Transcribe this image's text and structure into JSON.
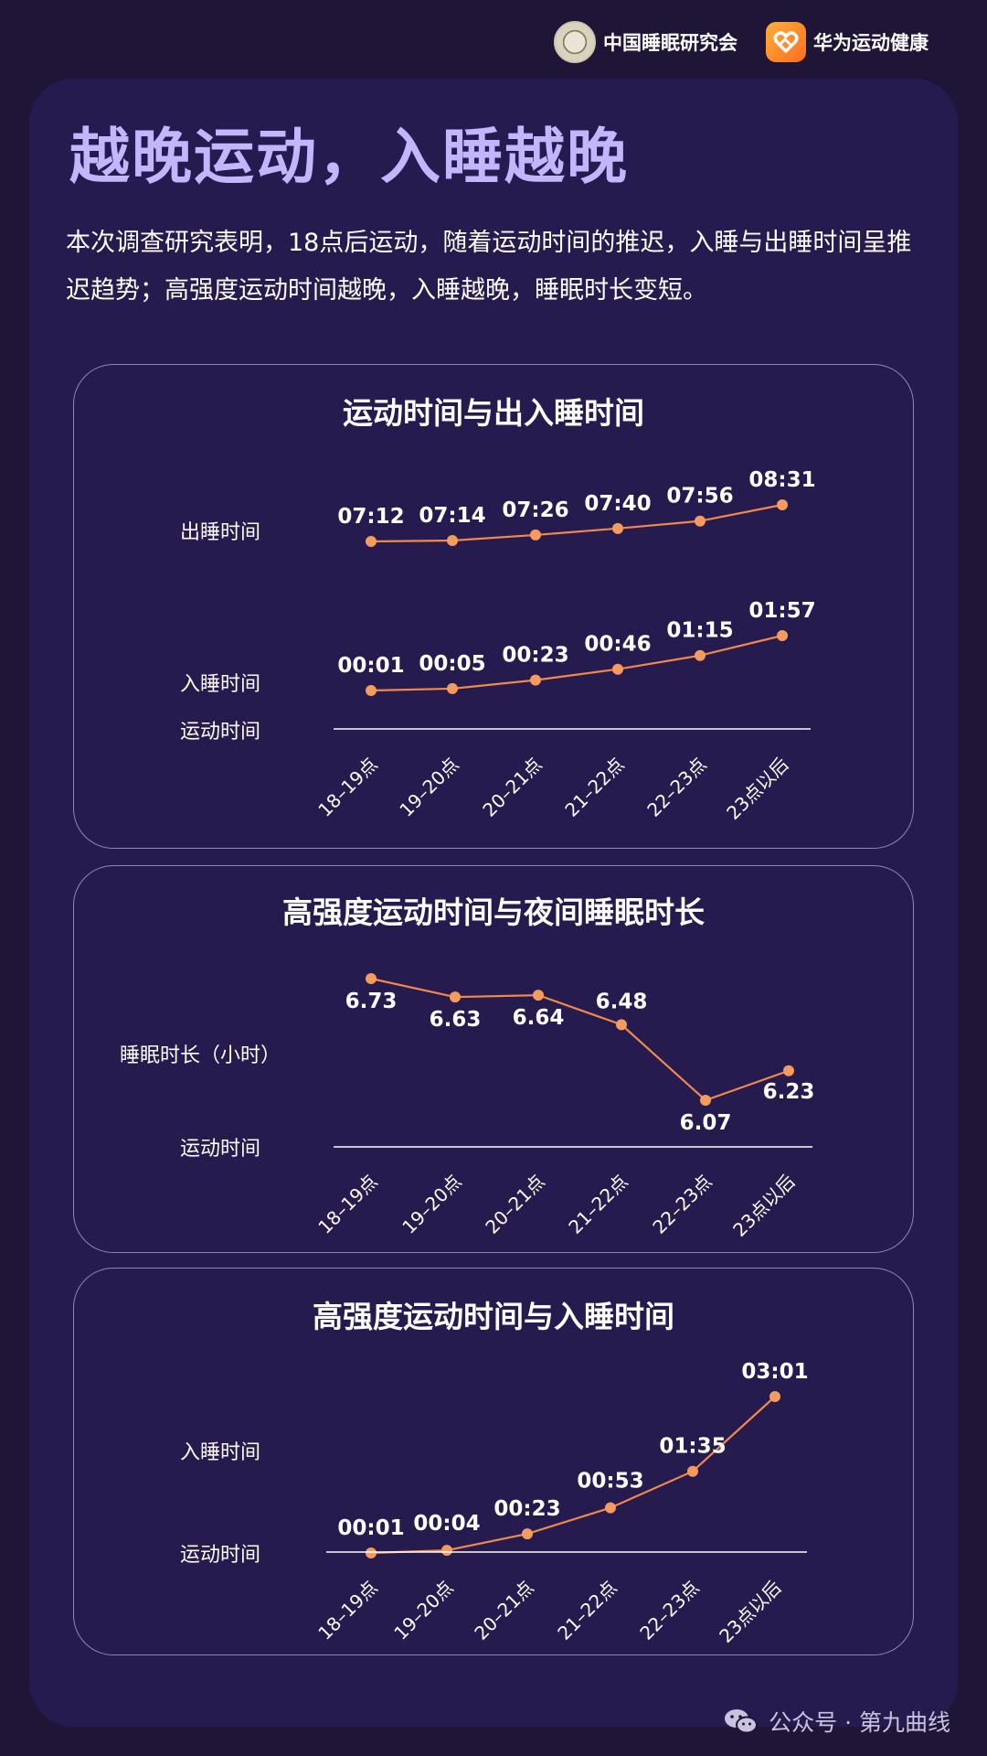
{
  "header": {
    "org_a": "中国睡眠研究会",
    "org_b": "华为运动健康"
  },
  "main": {
    "title": "越晚运动，入睡越晚",
    "intro": "本次调查研究表明，18点后运动，随着运动时间的推迟，入睡与出睡时间呈推迟趋势；高强度运动时间越晚，入睡越晚，睡眠时长变短。"
  },
  "footer": {
    "text": "公众号 · 第九曲线"
  },
  "colors": {
    "line": "#f0894a",
    "point": "#f59b5e",
    "title": "#c4b5ff"
  },
  "chart_data": [
    {
      "type": "line",
      "title": "运动时间与出入睡时间",
      "xlabel": "运动时间",
      "categories": [
        "18–19点",
        "19–20点",
        "20–21点",
        "21–22点",
        "22–23点",
        "23点以后"
      ],
      "series": [
        {
          "name": "出睡时间",
          "labels": [
            "07:12",
            "07:14",
            "07:26",
            "07:40",
            "07:56",
            "08:31"
          ],
          "values": [
            432,
            434,
            446,
            460,
            476,
            511
          ]
        },
        {
          "name": "入睡时间",
          "labels": [
            "00:01",
            "00:05",
            "00:23",
            "00:46",
            "01:15",
            "01:57"
          ],
          "values": [
            1,
            5,
            23,
            46,
            75,
            117
          ]
        }
      ]
    },
    {
      "type": "line",
      "title": "高强度运动时间与夜间睡眠时长",
      "xlabel": "运动时间",
      "ylabel": "睡眠时长（小时）",
      "categories": [
        "18–19点",
        "19–20点",
        "20–21点",
        "21–22点",
        "22–23点",
        "23点以后"
      ],
      "series": [
        {
          "labels": [
            "6.73",
            "6.63",
            "6.64",
            "6.48",
            "6.07",
            "6.23"
          ],
          "values": [
            6.73,
            6.63,
            6.64,
            6.48,
            6.07,
            6.23
          ]
        }
      ]
    },
    {
      "type": "line",
      "title": "高强度运动时间与入睡时间",
      "xlabel": "运动时间",
      "ylabel": "入睡时间",
      "categories": [
        "18–19点",
        "19–20点",
        "20–21点",
        "21–22点",
        "22–23点",
        "23点以后"
      ],
      "series": [
        {
          "labels": [
            "00:01",
            "00:04",
            "00:23",
            "00:53",
            "01:35",
            "03:01"
          ],
          "values": [
            1,
            4,
            23,
            53,
            95,
            181
          ]
        }
      ]
    }
  ]
}
